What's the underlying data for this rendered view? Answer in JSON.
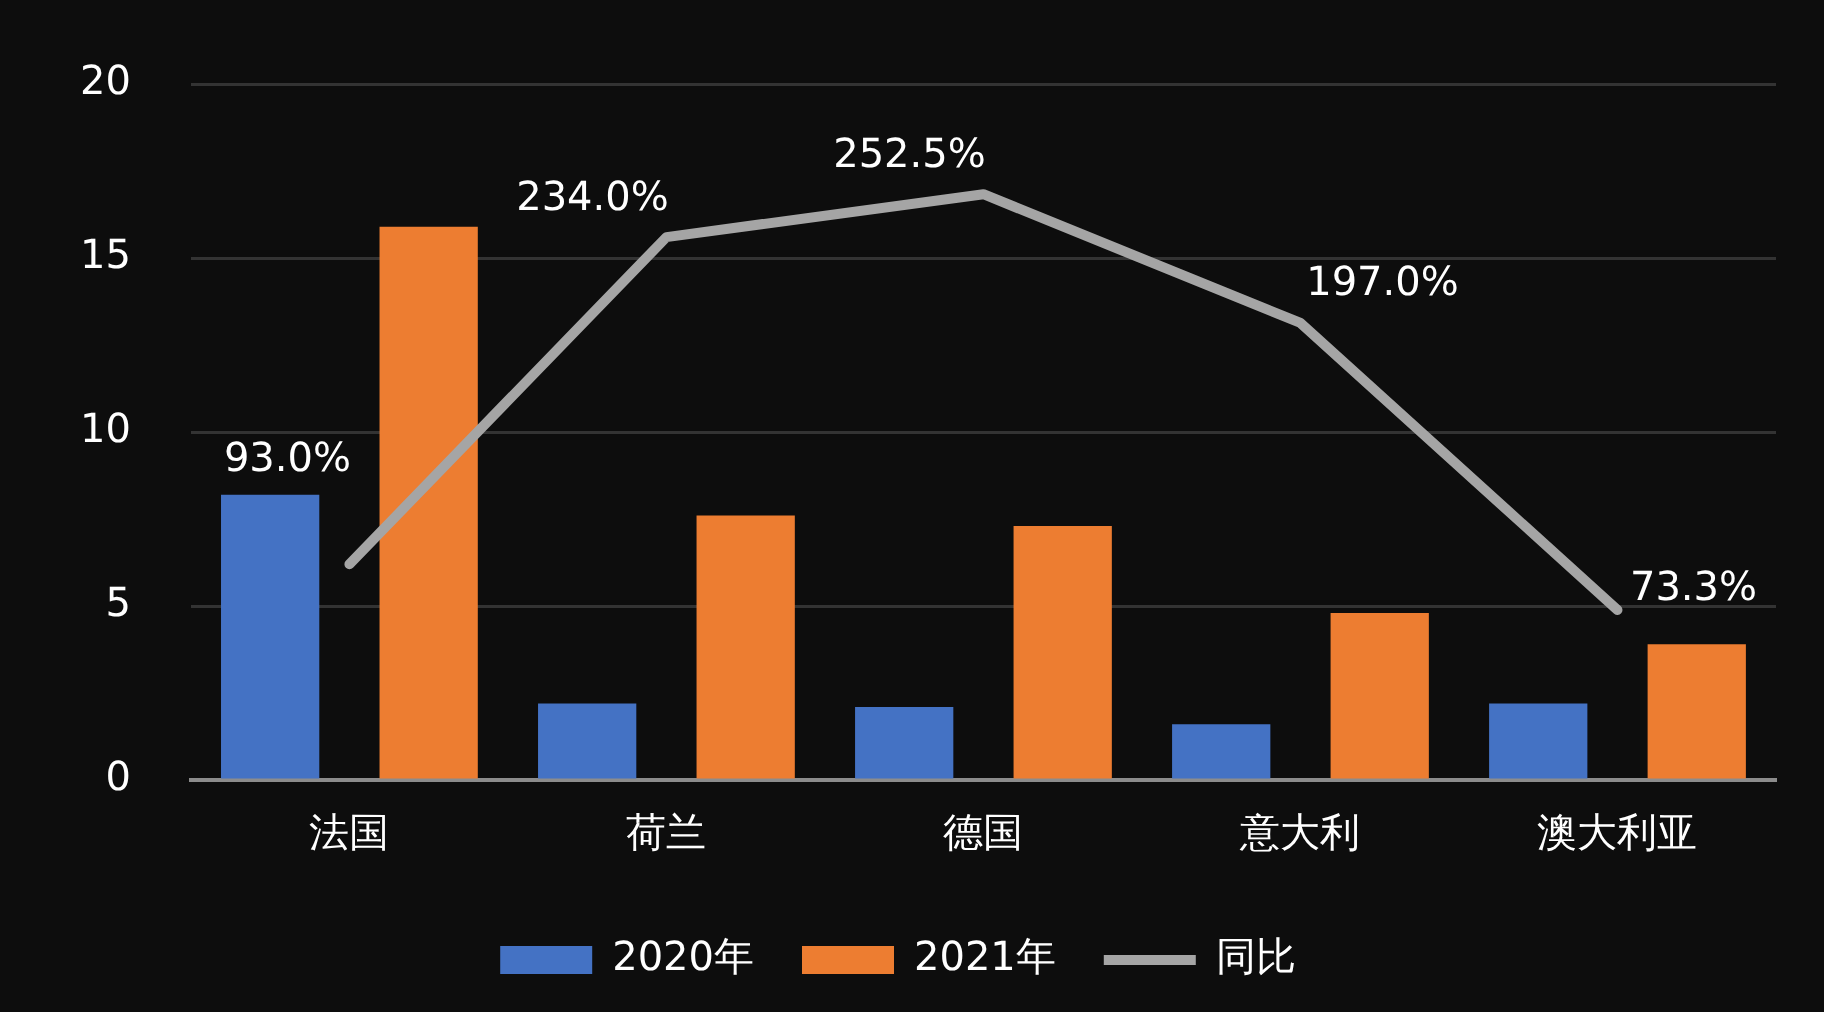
{
  "chart_data": {
    "type": "bar",
    "categories": [
      "法国",
      "荷兰",
      "德国",
      "意大利",
      "澳大利亚"
    ],
    "series": [
      {
        "name": "2020年",
        "color": "#4472c4",
        "values": [
          8.2,
          2.2,
          2.1,
          1.6,
          2.2
        ]
      },
      {
        "name": "2021年",
        "color": "#ed7d31",
        "values": [
          15.9,
          7.6,
          7.3,
          4.8,
          3.9
        ]
      },
      {
        "name": "同比",
        "type": "line",
        "axis": "y2",
        "color": "#a5a5a5",
        "values": [
          93.0,
          234.0,
          252.5,
          197.0,
          73.3
        ],
        "value_labels": [
          "93.0%",
          "234.0%",
          "252.5%",
          "197.0%",
          "73.3%"
        ]
      }
    ],
    "ylim": [
      0,
      20
    ],
    "yticks": [
      0,
      5,
      10,
      15,
      20
    ],
    "y2lim": [
      0,
      300
    ],
    "grid": "y",
    "legend": "bottom",
    "marker": "none",
    "line_style": "solid"
  }
}
